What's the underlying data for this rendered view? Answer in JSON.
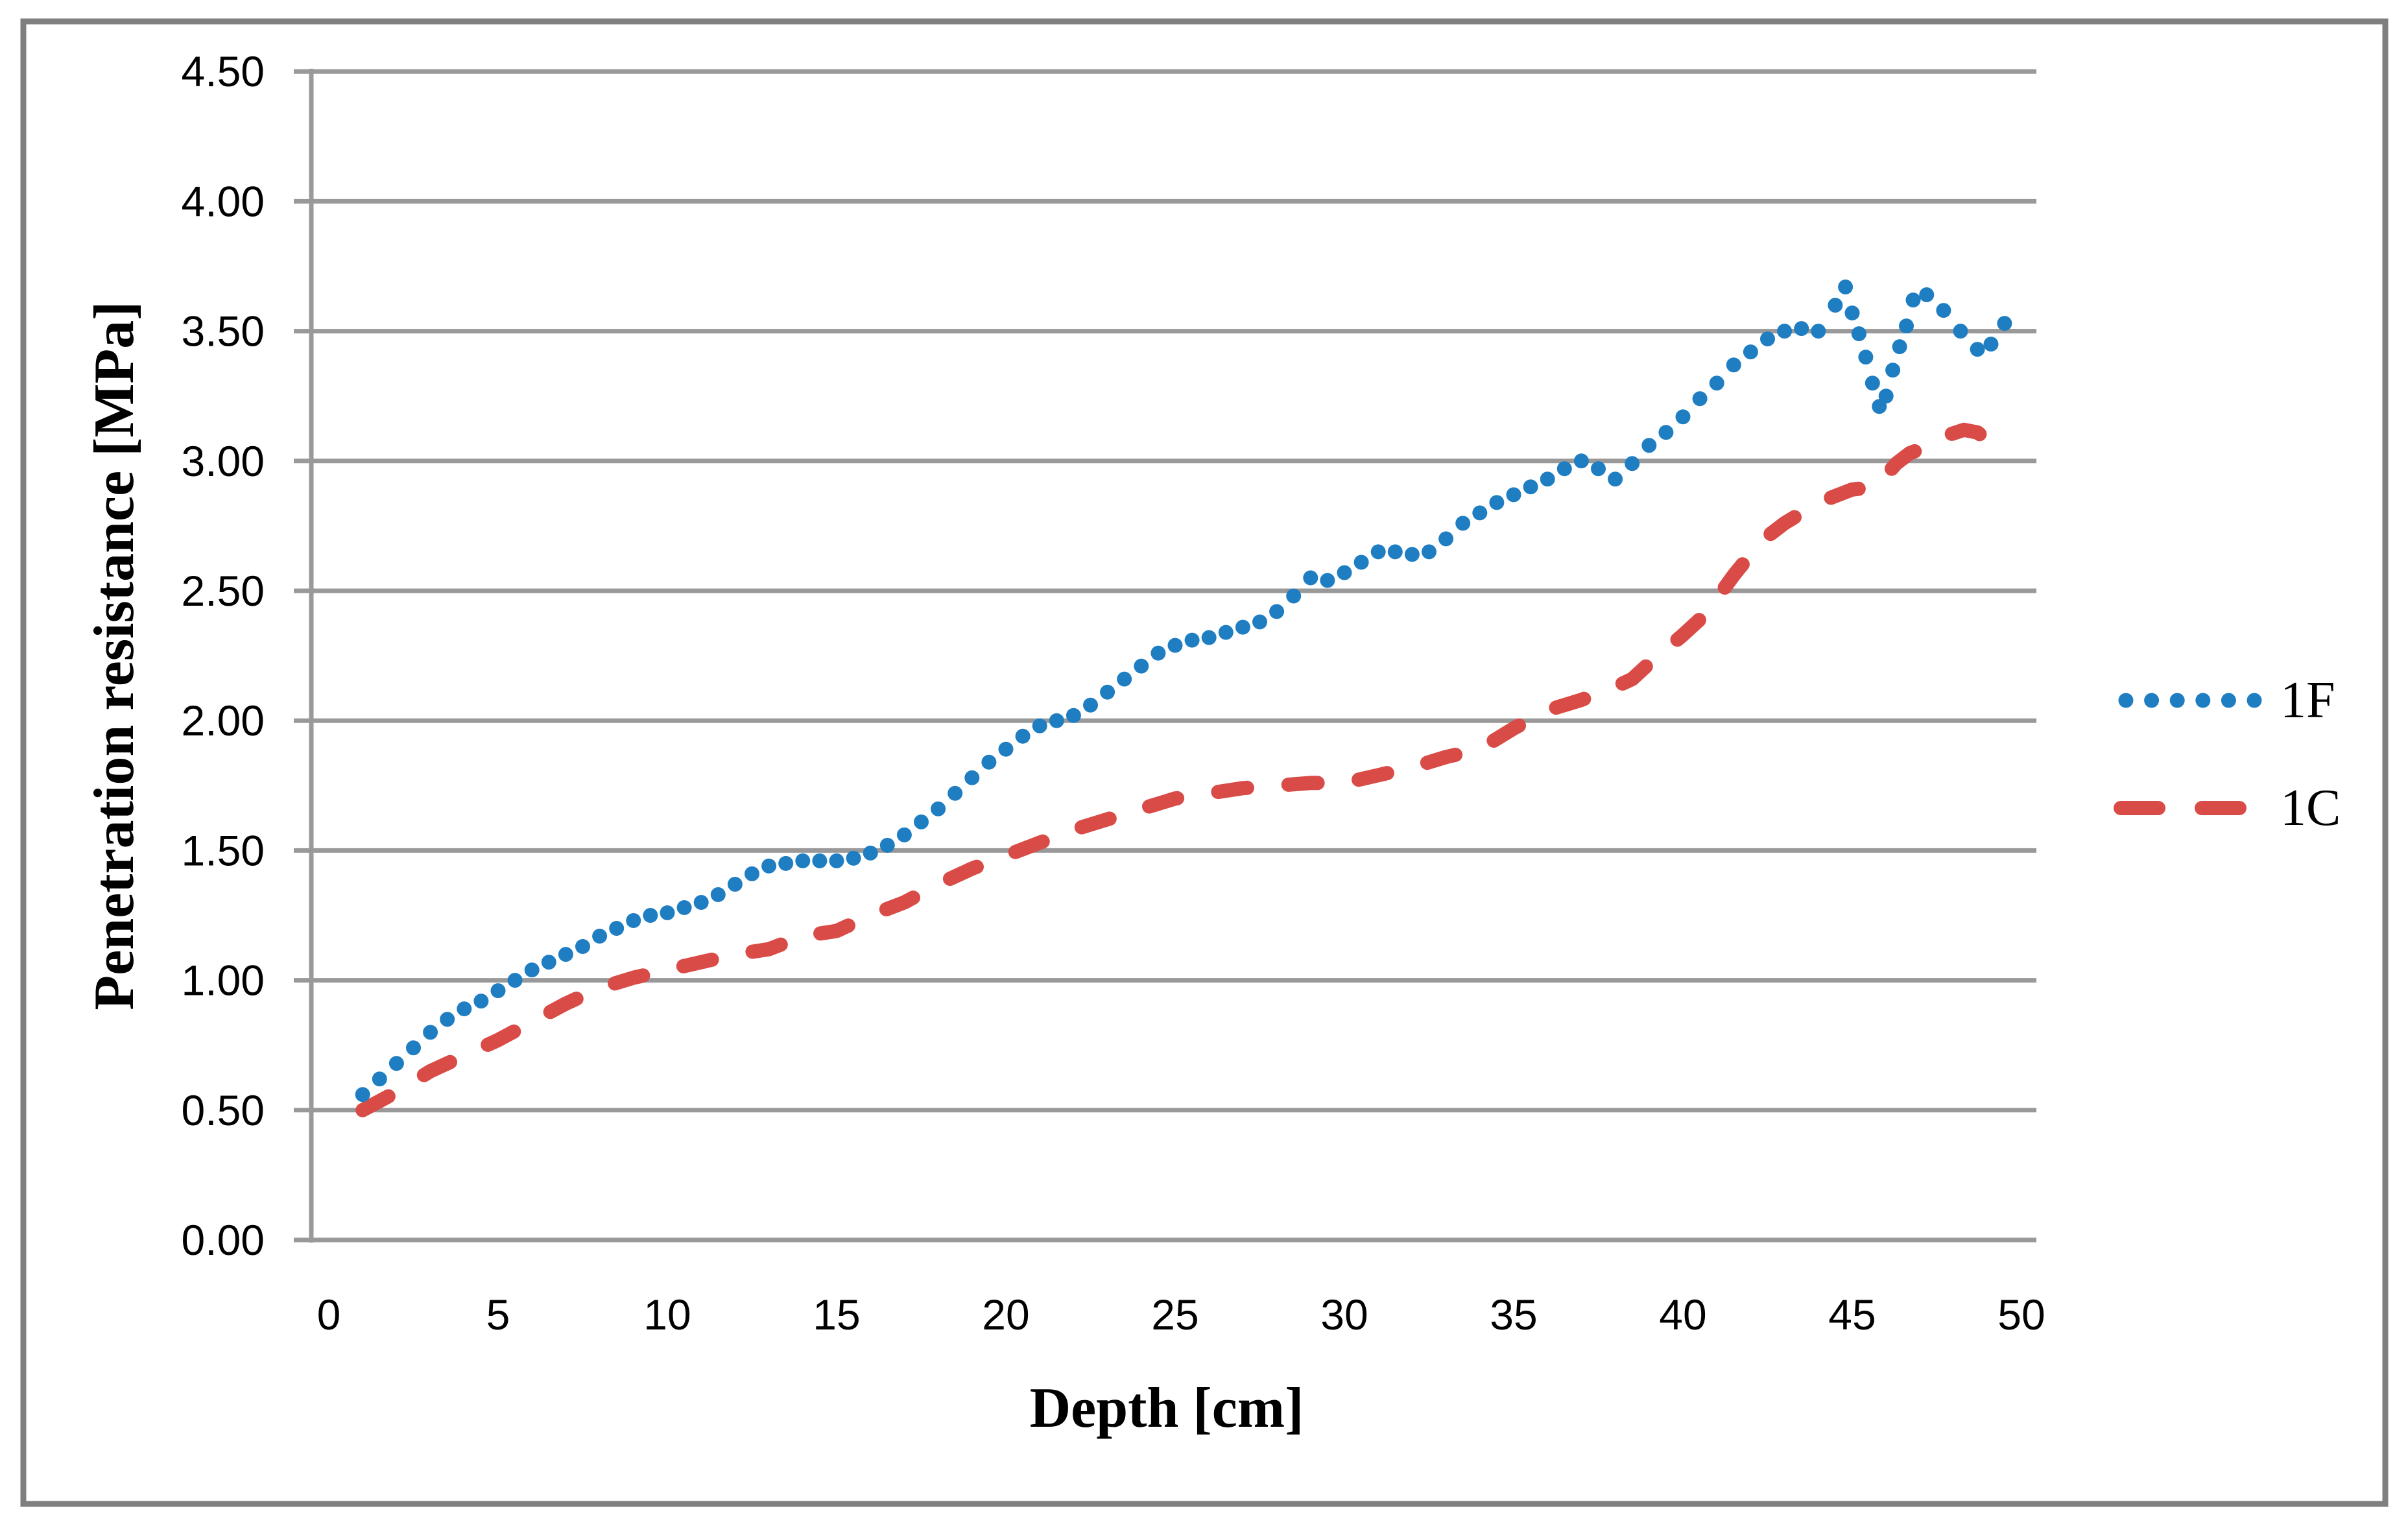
{
  "figure": {
    "background_color": "#ffffff",
    "border_color": "#7f7f7f",
    "gridline_color": "#999999",
    "text_color": "#000000"
  },
  "chart_data": {
    "type": "line",
    "title": "",
    "xlabel": "Depth [cm]",
    "ylabel": "Penetration resistance [MPa]",
    "xlim": [
      0,
      50
    ],
    "ylim": [
      0.0,
      4.5
    ],
    "grid": "horizontal",
    "legend_position": "right-middle",
    "x_ticks": [
      {
        "value": 0,
        "label": "0"
      },
      {
        "value": 5,
        "label": "5"
      },
      {
        "value": 10,
        "label": "10"
      },
      {
        "value": 15,
        "label": "15"
      },
      {
        "value": 20,
        "label": "20"
      },
      {
        "value": 25,
        "label": "25"
      },
      {
        "value": 30,
        "label": "30"
      },
      {
        "value": 35,
        "label": "35"
      },
      {
        "value": 40,
        "label": "40"
      },
      {
        "value": 45,
        "label": "45"
      },
      {
        "value": 50,
        "label": "50"
      }
    ],
    "y_ticks": [
      {
        "value": 0.0,
        "label": "0.00"
      },
      {
        "value": 0.5,
        "label": "0.50"
      },
      {
        "value": 1.0,
        "label": "1.00"
      },
      {
        "value": 1.5,
        "label": "1.50"
      },
      {
        "value": 2.0,
        "label": "2.00"
      },
      {
        "value": 2.5,
        "label": "2.50"
      },
      {
        "value": 3.0,
        "label": "3.00"
      },
      {
        "value": 3.5,
        "label": "3.50"
      },
      {
        "value": 4.0,
        "label": "4.00"
      },
      {
        "value": 4.5,
        "label": "4.50"
      }
    ],
    "series": [
      {
        "name": "1F",
        "style": "dotted",
        "color": "#1f7ec2",
        "points": [
          [
            1,
            0.56
          ],
          [
            1.5,
            0.62
          ],
          [
            2,
            0.68
          ],
          [
            2.5,
            0.74
          ],
          [
            3,
            0.8
          ],
          [
            3.5,
            0.85
          ],
          [
            4,
            0.89
          ],
          [
            4.5,
            0.92
          ],
          [
            5,
            0.96
          ],
          [
            5.5,
            1.0
          ],
          [
            6,
            1.04
          ],
          [
            6.5,
            1.07
          ],
          [
            7,
            1.1
          ],
          [
            7.5,
            1.13
          ],
          [
            8,
            1.17
          ],
          [
            8.5,
            1.2
          ],
          [
            9,
            1.23
          ],
          [
            9.5,
            1.25
          ],
          [
            10,
            1.26
          ],
          [
            10.5,
            1.28
          ],
          [
            11,
            1.3
          ],
          [
            11.5,
            1.33
          ],
          [
            12,
            1.37
          ],
          [
            12.5,
            1.41
          ],
          [
            13,
            1.44
          ],
          [
            13.5,
            1.45
          ],
          [
            14,
            1.46
          ],
          [
            14.5,
            1.46
          ],
          [
            15,
            1.46
          ],
          [
            15.5,
            1.47
          ],
          [
            16,
            1.49
          ],
          [
            16.5,
            1.52
          ],
          [
            17,
            1.56
          ],
          [
            17.5,
            1.61
          ],
          [
            18,
            1.66
          ],
          [
            18.5,
            1.72
          ],
          [
            19,
            1.78
          ],
          [
            19.5,
            1.84
          ],
          [
            20,
            1.89
          ],
          [
            20.5,
            1.94
          ],
          [
            21,
            1.98
          ],
          [
            21.5,
            2.0
          ],
          [
            22,
            2.02
          ],
          [
            22.5,
            2.06
          ],
          [
            23,
            2.11
          ],
          [
            23.5,
            2.16
          ],
          [
            24,
            2.21
          ],
          [
            24.5,
            2.26
          ],
          [
            25,
            2.29
          ],
          [
            25.5,
            2.31
          ],
          [
            26,
            2.32
          ],
          [
            26.5,
            2.34
          ],
          [
            27,
            2.36
          ],
          [
            27.5,
            2.38
          ],
          [
            28,
            2.42
          ],
          [
            28.5,
            2.48
          ],
          [
            29,
            2.55
          ],
          [
            29.5,
            2.54
          ],
          [
            30,
            2.57
          ],
          [
            30.5,
            2.61
          ],
          [
            31,
            2.65
          ],
          [
            31.5,
            2.65
          ],
          [
            32,
            2.64
          ],
          [
            32.5,
            2.65
          ],
          [
            33,
            2.7
          ],
          [
            33.5,
            2.76
          ],
          [
            34,
            2.8
          ],
          [
            34.5,
            2.84
          ],
          [
            35,
            2.87
          ],
          [
            35.5,
            2.9
          ],
          [
            36,
            2.93
          ],
          [
            36.5,
            2.97
          ],
          [
            37,
            3.0
          ],
          [
            37.5,
            2.97
          ],
          [
            38,
            2.93
          ],
          [
            38.5,
            2.99
          ],
          [
            39,
            3.06
          ],
          [
            39.5,
            3.11
          ],
          [
            40,
            3.17
          ],
          [
            40.5,
            3.24
          ],
          [
            41,
            3.3
          ],
          [
            41.5,
            3.37
          ],
          [
            42,
            3.42
          ],
          [
            42.5,
            3.47
          ],
          [
            43,
            3.5
          ],
          [
            43.5,
            3.51
          ],
          [
            44,
            3.5
          ],
          [
            44.5,
            3.6
          ],
          [
            44.8,
            3.67
          ],
          [
            45,
            3.57
          ],
          [
            45.2,
            3.49
          ],
          [
            45.4,
            3.4
          ],
          [
            45.6,
            3.3
          ],
          [
            45.8,
            3.21
          ],
          [
            46,
            3.25
          ],
          [
            46.2,
            3.35
          ],
          [
            46.4,
            3.44
          ],
          [
            46.6,
            3.52
          ],
          [
            46.8,
            3.62
          ],
          [
            47.2,
            3.64
          ],
          [
            47.7,
            3.58
          ],
          [
            48.2,
            3.5
          ],
          [
            48.7,
            3.43
          ],
          [
            49.1,
            3.45
          ],
          [
            49.5,
            3.53
          ]
        ]
      },
      {
        "name": "1C",
        "style": "dashed",
        "color": "#d94b47",
        "points": [
          [
            1,
            0.5
          ],
          [
            2,
            0.57
          ],
          [
            3,
            0.65
          ],
          [
            4,
            0.71
          ],
          [
            5,
            0.77
          ],
          [
            6,
            0.84
          ],
          [
            7,
            0.91
          ],
          [
            8,
            0.97
          ],
          [
            9,
            1.01
          ],
          [
            10,
            1.04
          ],
          [
            11,
            1.07
          ],
          [
            12,
            1.1
          ],
          [
            13,
            1.12
          ],
          [
            14,
            1.17
          ],
          [
            15,
            1.19
          ],
          [
            16,
            1.25
          ],
          [
            17,
            1.3
          ],
          [
            18,
            1.37
          ],
          [
            19,
            1.43
          ],
          [
            20,
            1.48
          ],
          [
            21,
            1.53
          ],
          [
            22,
            1.58
          ],
          [
            23,
            1.62
          ],
          [
            24,
            1.66
          ],
          [
            25,
            1.7
          ],
          [
            26,
            1.72
          ],
          [
            27,
            1.74
          ],
          [
            28,
            1.75
          ],
          [
            29,
            1.76
          ],
          [
            30,
            1.76
          ],
          [
            31,
            1.79
          ],
          [
            32,
            1.82
          ],
          [
            33,
            1.86
          ],
          [
            34,
            1.89
          ],
          [
            34.5,
            1.93
          ],
          [
            35,
            1.97
          ],
          [
            36,
            2.04
          ],
          [
            37,
            2.08
          ],
          [
            38,
            2.13
          ],
          [
            38.5,
            2.16
          ],
          [
            39,
            2.22
          ],
          [
            40,
            2.33
          ],
          [
            40.5,
            2.39
          ],
          [
            41,
            2.47
          ],
          [
            41.5,
            2.56
          ],
          [
            42,
            2.64
          ],
          [
            42.5,
            2.71
          ],
          [
            43,
            2.76
          ],
          [
            44,
            2.84
          ],
          [
            44.4,
            2.86
          ],
          [
            45,
            2.89
          ],
          [
            45.7,
            2.9
          ],
          [
            46.3,
            2.99
          ],
          [
            46.7,
            3.03
          ],
          [
            47.3,
            3.06
          ],
          [
            47.6,
            3.09
          ],
          [
            48.3,
            3.12
          ],
          [
            48.7,
            3.11
          ],
          [
            49,
            3.08
          ]
        ]
      }
    ]
  }
}
